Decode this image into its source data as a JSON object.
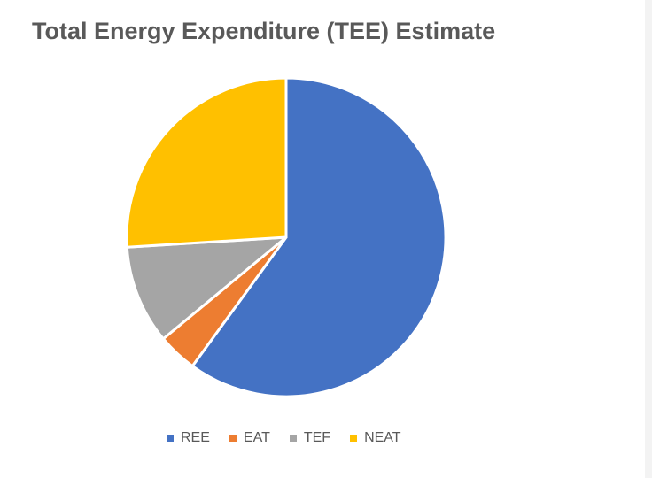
{
  "chart_data": {
    "type": "pie",
    "title": "Total Energy Expenditure (TEE) Estimate",
    "categories": [
      "REE",
      "EAT",
      "TEF",
      "NEAT"
    ],
    "values": [
      60,
      4,
      10,
      26
    ],
    "colors": [
      "#4472c4",
      "#ed7d31",
      "#a5a5a5",
      "#ffc000"
    ],
    "legend": "bottom",
    "start_angle": "top",
    "direction": "clockwise"
  }
}
